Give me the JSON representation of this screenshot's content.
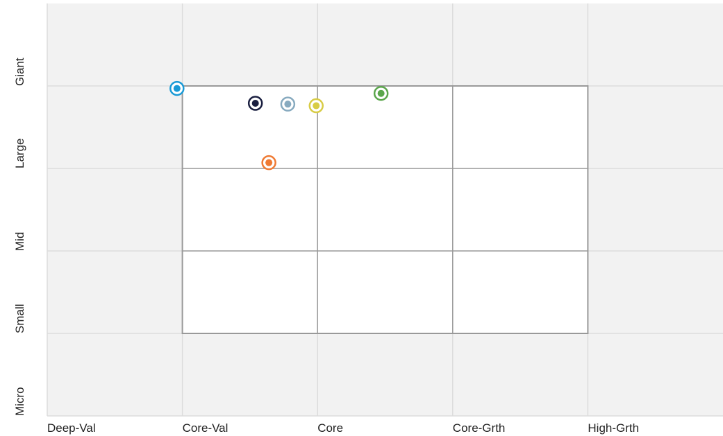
{
  "chart_data": {
    "type": "scatter",
    "xlim": [
      0,
      5
    ],
    "ylim": [
      0,
      5
    ],
    "xticks": [
      {
        "value": 0,
        "label": "Deep-Val"
      },
      {
        "value": 1,
        "label": "Core-Val"
      },
      {
        "value": 2,
        "label": "Core"
      },
      {
        "value": 3,
        "label": "Core-Grth"
      },
      {
        "value": 4,
        "label": "High-Grth"
      }
    ],
    "yticks": [
      {
        "value": 0,
        "label": "Micro"
      },
      {
        "value": 1,
        "label": "Small"
      },
      {
        "value": 2,
        "label": "Mid"
      },
      {
        "value": 3,
        "label": "Large"
      },
      {
        "value": 4,
        "label": "Giant"
      }
    ],
    "grid": true,
    "series": [
      {
        "color": "#1a9ad6",
        "x": [
          0.96
        ],
        "values": [
          3.97
        ]
      },
      {
        "color": "#1a1f40",
        "x": [
          1.54
        ],
        "values": [
          3.79
        ]
      },
      {
        "color": "#87aabf",
        "x": [
          1.78
        ],
        "values": [
          3.78
        ]
      },
      {
        "color": "#d8cc45",
        "x": [
          1.99
        ],
        "values": [
          3.76
        ]
      },
      {
        "color": "#5aa64b",
        "x": [
          2.47
        ],
        "values": [
          3.91
        ]
      },
      {
        "color": "#ef7a33",
        "x": [
          1.64
        ],
        "values": [
          3.07
        ]
      }
    ]
  }
}
